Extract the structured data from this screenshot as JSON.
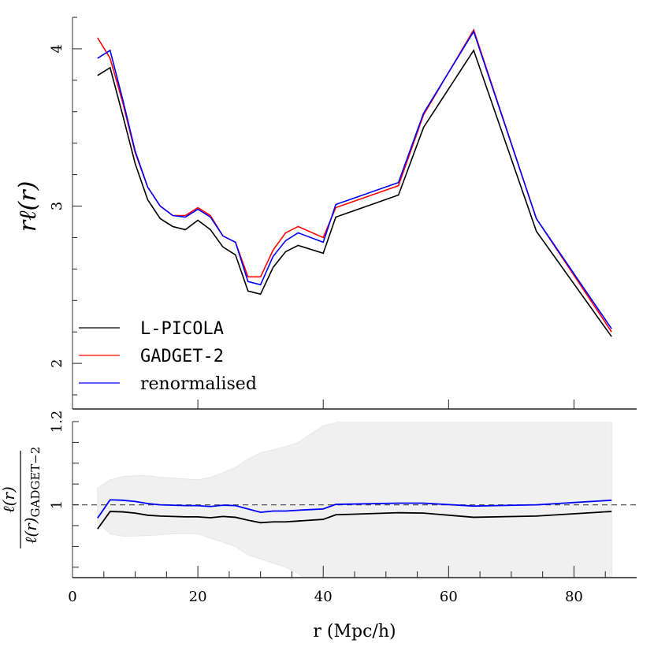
{
  "chart_data": [
    {
      "type": "line",
      "panel": "top",
      "ylabel": "rℓ(r)",
      "xlim": [
        0,
        90
      ],
      "ylim": [
        1.71,
        4.2
      ],
      "yticks": [
        2,
        3,
        4
      ],
      "x": [
        4,
        6,
        8,
        10,
        12,
        14,
        16,
        18,
        20,
        22,
        24,
        26,
        28,
        30,
        32,
        34,
        36,
        40,
        42,
        52,
        56,
        64,
        74,
        86
      ],
      "series": [
        {
          "name": "L-PICOLA",
          "color": "#000000",
          "values": [
            3.83,
            3.88,
            3.58,
            3.27,
            3.04,
            2.92,
            2.87,
            2.85,
            2.91,
            2.85,
            2.74,
            2.69,
            2.46,
            2.44,
            2.61,
            2.71,
            2.75,
            2.7,
            2.93,
            3.07,
            3.5,
            3.99,
            2.84,
            2.17
          ]
        },
        {
          "name": "GADGET-2",
          "color": "#ff0000",
          "values": [
            4.07,
            3.94,
            3.66,
            3.34,
            3.12,
            3.0,
            2.94,
            2.94,
            2.99,
            2.94,
            2.81,
            2.77,
            2.55,
            2.55,
            2.72,
            2.83,
            2.87,
            2.8,
            2.99,
            3.13,
            3.58,
            4.12,
            2.92,
            2.2
          ]
        },
        {
          "name": "renormalised",
          "color": "#0000ff",
          "values": [
            3.94,
            3.99,
            3.68,
            3.35,
            3.12,
            3.0,
            2.94,
            2.93,
            2.98,
            2.93,
            2.81,
            2.77,
            2.52,
            2.5,
            2.68,
            2.78,
            2.83,
            2.77,
            3.01,
            3.15,
            3.59,
            4.11,
            2.92,
            2.22
          ]
        }
      ],
      "legend": "bottom-left",
      "grid": false
    },
    {
      "type": "line",
      "panel": "bottom",
      "ylabel_num": "ℓ(r)",
      "ylabel_den": "ℓ(r)",
      "ylabel_den_sub": "GADGET−2",
      "xlabel": "r (Mpc/h)",
      "xlim": [
        0,
        90
      ],
      "ylim": [
        0.825,
        1.2
      ],
      "xticks": [
        0,
        20,
        40,
        60,
        80
      ],
      "yticks": [
        1,
        1.2
      ],
      "reference_line": 1,
      "x": [
        4,
        6,
        8,
        10,
        12,
        14,
        16,
        18,
        20,
        22,
        24,
        26,
        28,
        30,
        32,
        34,
        36,
        40,
        42,
        52,
        56,
        64,
        74,
        86
      ],
      "series": [
        {
          "name": "L-PICOLA",
          "color": "#000000",
          "values": [
            0.942,
            0.984,
            0.983,
            0.98,
            0.975,
            0.973,
            0.972,
            0.971,
            0.971,
            0.969,
            0.972,
            0.97,
            0.963,
            0.957,
            0.959,
            0.959,
            0.961,
            0.965,
            0.976,
            0.981,
            0.98,
            0.97,
            0.973,
            0.984
          ]
        },
        {
          "name": "renormalised",
          "color": "#0000ff",
          "values": [
            0.968,
            1.012,
            1.011,
            1.008,
            1.003,
            1.0,
            0.999,
            0.998,
            0.998,
            0.996,
            0.999,
            0.998,
            0.99,
            0.982,
            0.985,
            0.985,
            0.987,
            0.99,
            1.001,
            1.004,
            1.004,
            0.997,
            1.0,
            1.011
          ]
        }
      ],
      "band": {
        "color": "#f0f0f0",
        "x": [
          4,
          6,
          8,
          10,
          12,
          14,
          16,
          18,
          20,
          22,
          24,
          26,
          28,
          30,
          32,
          34,
          36,
          38,
          40,
          42,
          44,
          52,
          56,
          64,
          74,
          86
        ],
        "upper": [
          1.04,
          1.06,
          1.068,
          1.07,
          1.07,
          1.066,
          1.064,
          1.062,
          1.06,
          1.066,
          1.077,
          1.09,
          1.11,
          1.125,
          1.132,
          1.14,
          1.15,
          1.17,
          1.19,
          1.197,
          1.21,
          1.3,
          1.3,
          1.3,
          1.3,
          1.3
        ],
        "lower": [
          0.96,
          0.93,
          0.925,
          0.925,
          0.926,
          0.928,
          0.93,
          0.931,
          0.93,
          0.92,
          0.91,
          0.9,
          0.88,
          0.87,
          0.86,
          0.85,
          0.835,
          0.81,
          0.78,
          0.75,
          0.7,
          0.6,
          0.6,
          0.6,
          0.6,
          0.6
        ]
      }
    }
  ]
}
